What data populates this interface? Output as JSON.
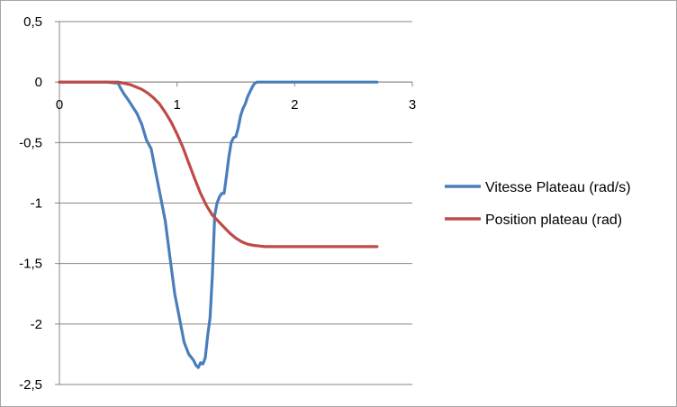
{
  "chart_data": {
    "type": "line",
    "title": "",
    "xlabel": "",
    "ylabel": "",
    "xlim": [
      0,
      3
    ],
    "ylim": [
      -2.5,
      0.5
    ],
    "x_ticks": [
      "0",
      "1",
      "2",
      "3"
    ],
    "y_ticks": [
      "0,5",
      "0",
      "-0,5",
      "-1",
      "-1,5",
      "-2",
      "-2,5"
    ],
    "y_tick_values": [
      0.5,
      0,
      -0.5,
      -1,
      -1.5,
      -2,
      -2.5
    ],
    "x_tick_values": [
      0,
      1,
      2,
      3
    ],
    "grid": "horizontal",
    "legend_position": "right",
    "series": [
      {
        "name": "Vitesse Plateau (rad/s)",
        "color": "#4a7ebb",
        "x": [
          0,
          0.1,
          0.2,
          0.3,
          0.4,
          0.5,
          0.52,
          0.55,
          0.58,
          0.62,
          0.66,
          0.7,
          0.74,
          0.78,
          0.82,
          0.86,
          0.9,
          0.94,
          0.98,
          1.02,
          1.06,
          1.1,
          1.14,
          1.16,
          1.18,
          1.2,
          1.22,
          1.24,
          1.26,
          1.28,
          1.3,
          1.32,
          1.34,
          1.36,
          1.38,
          1.4,
          1.42,
          1.44,
          1.46,
          1.48,
          1.5,
          1.52,
          1.54,
          1.56,
          1.58,
          1.6,
          1.62,
          1.64,
          1.66,
          1.68,
          1.7,
          1.72,
          1.74,
          1.76,
          1.78,
          1.8,
          1.82,
          1.84,
          1.86,
          1.88,
          1.9,
          2.0,
          2.1,
          2.2,
          2.3,
          2.4,
          2.5,
          2.6,
          2.7
        ],
        "values": [
          0,
          0,
          0,
          0,
          0,
          -0.01,
          -0.05,
          -0.1,
          -0.14,
          -0.2,
          -0.26,
          -0.35,
          -0.48,
          -0.55,
          -0.75,
          -0.95,
          -1.15,
          -1.45,
          -1.75,
          -1.95,
          -2.15,
          -2.25,
          -2.3,
          -2.34,
          -2.36,
          -2.32,
          -2.33,
          -2.28,
          -2.1,
          -1.95,
          -1.6,
          -1.1,
          -1.0,
          -0.95,
          -0.92,
          -0.92,
          -0.78,
          -0.62,
          -0.5,
          -0.46,
          -0.45,
          -0.38,
          -0.28,
          -0.22,
          -0.18,
          -0.12,
          -0.08,
          -0.04,
          -0.01,
          0,
          0,
          0,
          0,
          0,
          0,
          0,
          0,
          0,
          0,
          0,
          0,
          0,
          0,
          0,
          0,
          0,
          0,
          0,
          0
        ]
      },
      {
        "name": "Position plateau (rad)",
        "color": "#be4b48",
        "x": [
          0,
          0.1,
          0.2,
          0.3,
          0.4,
          0.5,
          0.55,
          0.6,
          0.65,
          0.7,
          0.75,
          0.8,
          0.85,
          0.9,
          0.95,
          1.0,
          1.05,
          1.1,
          1.15,
          1.2,
          1.25,
          1.3,
          1.35,
          1.4,
          1.45,
          1.5,
          1.55,
          1.6,
          1.65,
          1.7,
          1.75,
          1.8,
          1.85,
          1.9,
          2.0,
          2.2,
          2.4,
          2.6,
          2.7
        ],
        "values": [
          0,
          0,
          0,
          0,
          0,
          0,
          -0.01,
          -0.02,
          -0.04,
          -0.06,
          -0.09,
          -0.13,
          -0.18,
          -0.25,
          -0.33,
          -0.43,
          -0.54,
          -0.67,
          -0.8,
          -0.92,
          -1.02,
          -1.1,
          -1.15,
          -1.2,
          -1.25,
          -1.29,
          -1.32,
          -1.34,
          -1.35,
          -1.355,
          -1.36,
          -1.36,
          -1.36,
          -1.36,
          -1.36,
          -1.36,
          -1.36,
          -1.36,
          -1.36
        ]
      }
    ]
  }
}
